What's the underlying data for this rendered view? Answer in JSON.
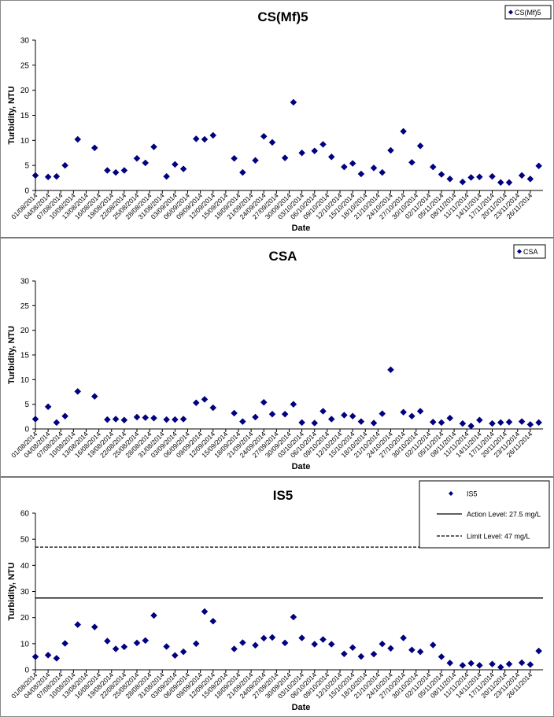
{
  "colors": {
    "marker": "#000080",
    "axis": "#000000",
    "text": "#000000"
  },
  "x_ticks": [
    "01/08/2014",
    "04/08/2014",
    "07/08/2014",
    "10/08/2014",
    "13/08/2014",
    "16/08/2014",
    "19/08/2014",
    "22/08/2014",
    "25/08/2014",
    "28/08/2014",
    "31/08/2014",
    "03/09/2014",
    "06/09/2014",
    "09/09/2014",
    "12/09/2014",
    "15/09/2014",
    "18/09/2014",
    "21/09/2014",
    "24/09/2014",
    "27/09/2014",
    "30/09/2014",
    "03/10/2014",
    "06/10/2014",
    "09/10/2014",
    "12/10/2014",
    "15/10/2014",
    "18/10/2014",
    "21/10/2014",
    "24/10/2014",
    "27/10/2014",
    "30/10/2014",
    "02/11/2014",
    "05/11/2014",
    "08/11/2014",
    "11/11/2014",
    "14/11/2014",
    "17/11/2014",
    "20/11/2014",
    "23/11/2014",
    "26/11/2014"
  ],
  "chart_data": [
    {
      "type": "scatter",
      "title": "CS(Mf)5",
      "xlabel": "Date",
      "ylabel": "Turbidity, NTU",
      "ylim": [
        0,
        30
      ],
      "yticks": [
        0,
        5,
        10,
        15,
        20,
        25,
        30
      ],
      "x_range": [
        "01/08/2014",
        "29/11/2014"
      ],
      "legend": {
        "placement": "top-right",
        "entries": [
          "CS(Mf)5"
        ]
      },
      "series": [
        {
          "name": "CS(Mf)5",
          "x": [
            "01/08/2014",
            "04/08/2014",
            "06/08/2014",
            "08/08/2014",
            "11/08/2014",
            "15/08/2014",
            "18/08/2014",
            "20/08/2014",
            "22/08/2014",
            "25/08/2014",
            "27/08/2014",
            "29/08/2014",
            "01/09/2014",
            "03/09/2014",
            "05/09/2014",
            "08/09/2014",
            "10/09/2014",
            "12/09/2014",
            "17/09/2014",
            "19/09/2014",
            "22/09/2014",
            "24/09/2014",
            "26/09/2014",
            "29/09/2014",
            "01/10/2014",
            "03/10/2014",
            "06/10/2014",
            "08/10/2014",
            "10/10/2014",
            "13/10/2014",
            "15/10/2014",
            "17/10/2014",
            "20/10/2014",
            "22/10/2014",
            "24/10/2014",
            "27/10/2014",
            "29/10/2014",
            "31/10/2014",
            "03/11/2014",
            "05/11/2014",
            "07/11/2014",
            "10/11/2014",
            "12/11/2014",
            "14/11/2014",
            "17/11/2014",
            "19/11/2014",
            "21/11/2014",
            "24/11/2014",
            "26/11/2014",
            "28/11/2014"
          ],
          "y": [
            3.0,
            2.7,
            2.8,
            5.0,
            10.2,
            8.5,
            4.0,
            3.6,
            4.0,
            6.4,
            5.5,
            8.7,
            2.8,
            5.2,
            4.3,
            10.3,
            10.2,
            11.0,
            6.4,
            3.6,
            6.0,
            10.8,
            9.6,
            6.5,
            17.6,
            7.5,
            7.9,
            9.2,
            6.7,
            4.7,
            5.4,
            3.3,
            4.5,
            3.6,
            8.0,
            11.8,
            5.6,
            8.9,
            4.7,
            3.2,
            2.3,
            1.7,
            2.6,
            2.7,
            2.8,
            1.6,
            1.6,
            3.0,
            2.3,
            4.9
          ]
        }
      ]
    },
    {
      "type": "scatter",
      "title": "CSA",
      "xlabel": "Date",
      "ylabel": "Turbidity, NTU",
      "ylim": [
        0,
        30
      ],
      "yticks": [
        0,
        5,
        10,
        15,
        20,
        25,
        30
      ],
      "x_range": [
        "01/08/2014",
        "29/11/2014"
      ],
      "legend": {
        "placement": "top-right",
        "entries": [
          "CSA"
        ]
      },
      "series": [
        {
          "name": "CSA",
          "x": [
            "01/08/2014",
            "04/08/2014",
            "06/08/2014",
            "08/08/2014",
            "11/08/2014",
            "15/08/2014",
            "18/08/2014",
            "20/08/2014",
            "22/08/2014",
            "25/08/2014",
            "27/08/2014",
            "29/08/2014",
            "01/09/2014",
            "03/09/2014",
            "05/09/2014",
            "08/09/2014",
            "10/09/2014",
            "12/09/2014",
            "17/09/2014",
            "19/09/2014",
            "22/09/2014",
            "24/09/2014",
            "26/09/2014",
            "29/09/2014",
            "01/10/2014",
            "03/10/2014",
            "06/10/2014",
            "08/10/2014",
            "10/10/2014",
            "13/10/2014",
            "15/10/2014",
            "17/10/2014",
            "20/10/2014",
            "22/10/2014",
            "24/10/2014",
            "27/10/2014",
            "29/10/2014",
            "31/10/2014",
            "03/11/2014",
            "05/11/2014",
            "07/11/2014",
            "10/11/2014",
            "12/11/2014",
            "14/11/2014",
            "17/11/2014",
            "19/11/2014",
            "21/11/2014",
            "24/11/2014",
            "26/11/2014",
            "28/11/2014"
          ],
          "y": [
            2.0,
            4.5,
            1.3,
            2.6,
            7.6,
            6.6,
            1.9,
            2.0,
            1.8,
            2.4,
            2.3,
            2.2,
            1.9,
            1.9,
            2.0,
            5.3,
            6.0,
            4.3,
            3.2,
            1.5,
            2.4,
            5.4,
            3.0,
            3.0,
            5.0,
            1.3,
            1.2,
            3.6,
            2.0,
            2.8,
            2.6,
            1.5,
            1.2,
            3.1,
            12.0,
            3.4,
            2.6,
            3.6,
            1.4,
            1.3,
            2.2,
            1.1,
            0.6,
            1.8,
            1.1,
            1.3,
            1.4,
            1.5,
            0.9,
            1.3
          ]
        }
      ]
    },
    {
      "type": "scatter",
      "title": "IS5",
      "xlabel": "Date",
      "ylabel": "Turbidity, NTU",
      "ylim": [
        0,
        60
      ],
      "yticks": [
        0,
        10,
        20,
        30,
        40,
        50,
        60
      ],
      "x_range": [
        "01/08/2014",
        "29/11/2014"
      ],
      "legend": {
        "placement": "top-right",
        "entries": [
          "IS5",
          "Action Level: 27.5 mg/L",
          "Limit Level: 47 mg/L"
        ]
      },
      "series": [
        {
          "name": "IS5",
          "x": [
            "01/08/2014",
            "04/08/2014",
            "06/08/2014",
            "08/08/2014",
            "11/08/2014",
            "15/08/2014",
            "18/08/2014",
            "20/08/2014",
            "22/08/2014",
            "25/08/2014",
            "27/08/2014",
            "29/08/2014",
            "01/09/2014",
            "03/09/2014",
            "05/09/2014",
            "08/09/2014",
            "10/09/2014",
            "12/09/2014",
            "17/09/2014",
            "19/09/2014",
            "22/09/2014",
            "24/09/2014",
            "26/09/2014",
            "29/09/2014",
            "01/10/2014",
            "03/10/2014",
            "06/10/2014",
            "08/10/2014",
            "10/10/2014",
            "13/10/2014",
            "15/10/2014",
            "17/10/2014",
            "20/10/2014",
            "22/10/2014",
            "24/10/2014",
            "27/10/2014",
            "29/10/2014",
            "31/10/2014",
            "03/11/2014",
            "05/11/2014",
            "07/11/2014",
            "10/11/2014",
            "12/11/2014",
            "14/11/2014",
            "17/11/2014",
            "19/11/2014",
            "21/11/2014",
            "24/11/2014",
            "26/11/2014",
            "28/11/2014"
          ],
          "y": [
            5.0,
            5.6,
            4.4,
            10.1,
            17.3,
            16.4,
            11.0,
            8.0,
            8.8,
            10.3,
            11.2,
            20.8,
            8.9,
            5.5,
            6.9,
            10.0,
            22.3,
            18.6,
            8.0,
            10.4,
            9.4,
            12.1,
            12.4,
            10.3,
            20.2,
            12.2,
            9.8,
            11.6,
            9.8,
            6.1,
            8.5,
            5.1,
            6.0,
            9.9,
            8.2,
            12.2,
            7.6,
            6.9,
            9.5,
            5.0,
            2.6,
            1.7,
            2.5,
            1.7,
            2.2,
            1.0,
            2.2,
            2.7,
            2.0,
            7.2
          ]
        },
        {
          "name": "Action Level: 27.5 mg/L",
          "type": "hline",
          "value": 27.5,
          "style": "solid"
        },
        {
          "name": "Limit Level: 47 mg/L",
          "type": "hline",
          "value": 47,
          "style": "dashed"
        }
      ]
    }
  ]
}
